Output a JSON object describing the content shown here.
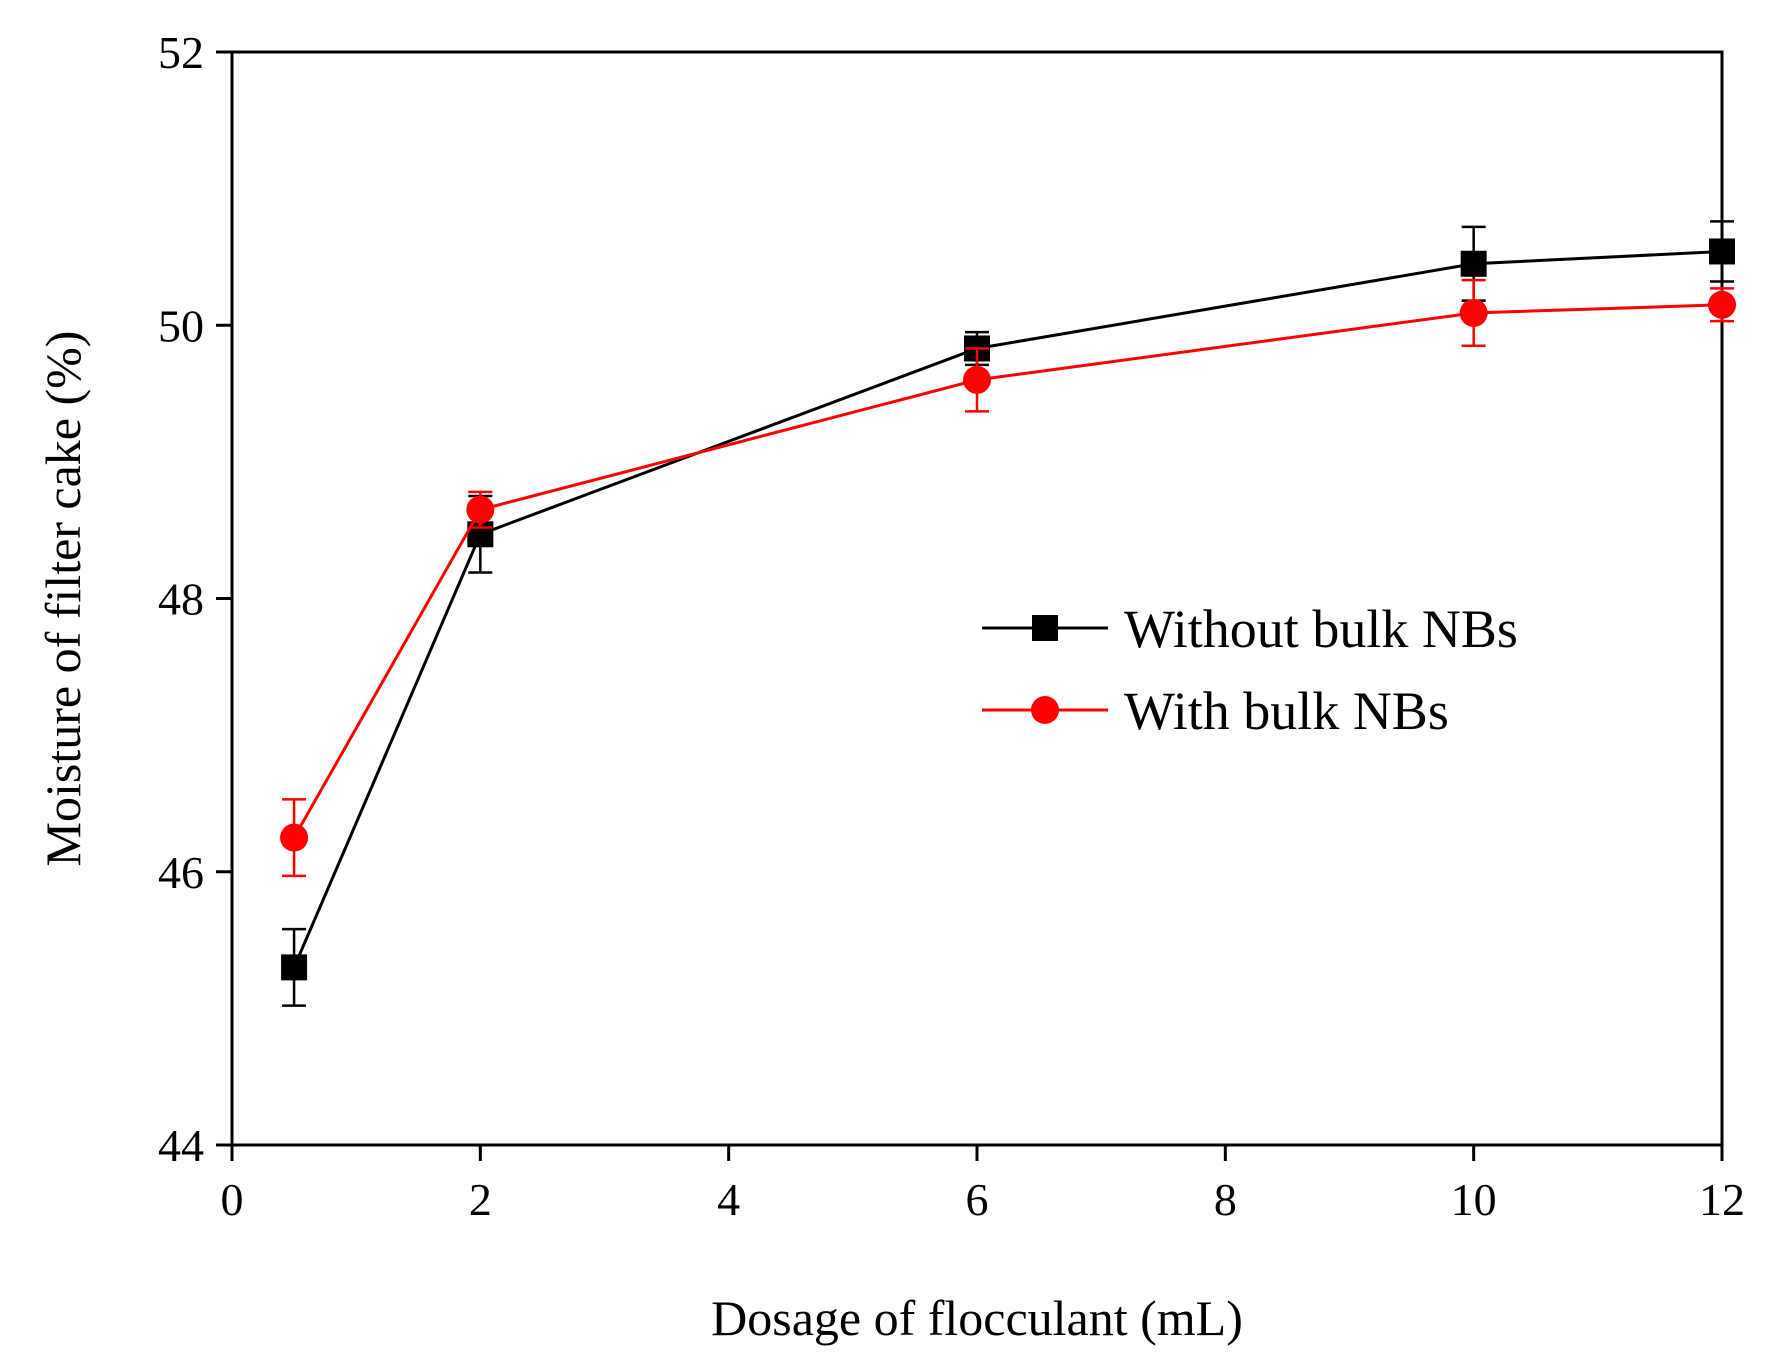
{
  "chart_data": {
    "type": "line",
    "title": "",
    "xlabel": "Dosage of flocculant (mL)",
    "ylabel": "Moisture of filter cake  (%)",
    "xlim": [
      0,
      12
    ],
    "ylim": [
      44,
      52
    ],
    "xticks": [
      0,
      2,
      4,
      6,
      8,
      10,
      12
    ],
    "yticks": [
      44,
      46,
      48,
      50,
      52
    ],
    "grid": false,
    "legend_position": "center-right",
    "series": [
      {
        "name": "Without bulk NBs",
        "color": "#000000",
        "marker": "square",
        "x": [
          0.5,
          2,
          6,
          10,
          12
        ],
        "y": [
          45.3,
          48.47,
          49.83,
          50.45,
          50.54
        ],
        "yerr": [
          0.28,
          0.28,
          0.12,
          0.27,
          0.22
        ]
      },
      {
        "name": "With bulk NBs",
        "color": "#ff0000",
        "marker": "circle",
        "x": [
          0.5,
          2,
          6,
          10,
          12
        ],
        "y": [
          46.25,
          48.65,
          49.6,
          50.09,
          50.15
        ],
        "yerr": [
          0.28,
          0.13,
          0.23,
          0.24,
          0.12
        ]
      }
    ]
  }
}
